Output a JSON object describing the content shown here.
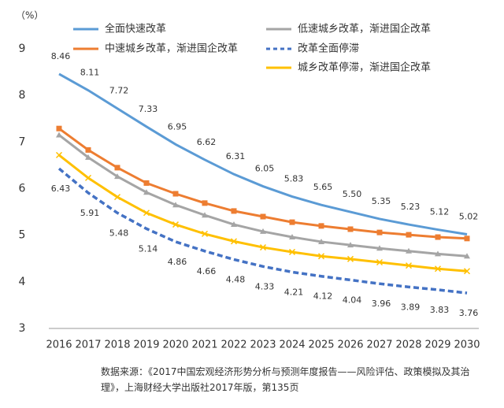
{
  "chart_data": {
    "type": "line",
    "ylabel": "（%）",
    "categories": [
      "2016",
      "2017",
      "2018",
      "2019",
      "2020",
      "2021",
      "2022",
      "2023",
      "2024",
      "2025",
      "2026",
      "2027",
      "2028",
      "2029",
      "2030"
    ],
    "ylim": [
      3,
      9
    ],
    "yticks": [
      3,
      4,
      5,
      6,
      7,
      8,
      9
    ],
    "series": [
      {
        "name": "全面快速改革",
        "color": "#5b9bd5",
        "line_style": "solid",
        "marker": null,
        "label_side": "above",
        "values": [
          8.46,
          8.11,
          7.72,
          7.33,
          6.95,
          6.62,
          6.31,
          6.05,
          5.83,
          5.65,
          5.5,
          5.35,
          5.23,
          5.12,
          5.02
        ],
        "value_labels": [
          "8.46",
          "8.11",
          "7.72",
          "7.33",
          "6.95",
          "6.62",
          "6.31",
          "6.05",
          "5.83",
          "5.65",
          "5.50",
          "5.35",
          "5.23",
          "5.12",
          "5.02"
        ]
      },
      {
        "name": "中速城乡改革，渐进国企改革",
        "color": "#ed7d31",
        "line_style": "solid",
        "marker": "square",
        "values": [
          7.29,
          6.83,
          6.45,
          6.12,
          5.89,
          5.69,
          5.52,
          5.4,
          5.28,
          5.2,
          5.13,
          5.06,
          5.01,
          4.96,
          4.93
        ]
      },
      {
        "name": "低速城乡改革，渐进国企改革",
        "color": "#a5a5a5",
        "line_style": "solid",
        "marker": "triangle",
        "values": [
          7.15,
          6.67,
          6.26,
          5.92,
          5.65,
          5.43,
          5.23,
          5.08,
          4.96,
          4.86,
          4.79,
          4.72,
          4.66,
          4.6,
          4.55
        ]
      },
      {
        "name": "改革全面停滞",
        "color": "#4472c4",
        "line_style": "dashed",
        "marker": null,
        "label_side": "below",
        "values": [
          6.43,
          5.91,
          5.48,
          5.14,
          4.86,
          4.66,
          4.48,
          4.33,
          4.21,
          4.12,
          4.04,
          3.96,
          3.89,
          3.83,
          3.76
        ],
        "value_labels": [
          "6.43",
          "5.91",
          "5.48",
          "5.14",
          "4.86",
          "4.66",
          "4.48",
          "4.33",
          "4.21",
          "4.12",
          "4.04",
          "3.96",
          "3.89",
          "3.83",
          "3.76"
        ]
      },
      {
        "name": "城乡改革停滞，渐进国企改革",
        "color": "#ffc000",
        "line_style": "solid",
        "marker": "x",
        "values": [
          6.72,
          6.23,
          5.82,
          5.48,
          5.23,
          5.03,
          4.87,
          4.74,
          4.64,
          4.55,
          4.49,
          4.42,
          4.35,
          4.28,
          4.23
        ]
      }
    ],
    "source": "数据来源：《2017中国宏观经济形势分析与预测年度报告——风险评估、政策模拟及其治理》，上海财经大学出版社2017年版，第135页"
  }
}
